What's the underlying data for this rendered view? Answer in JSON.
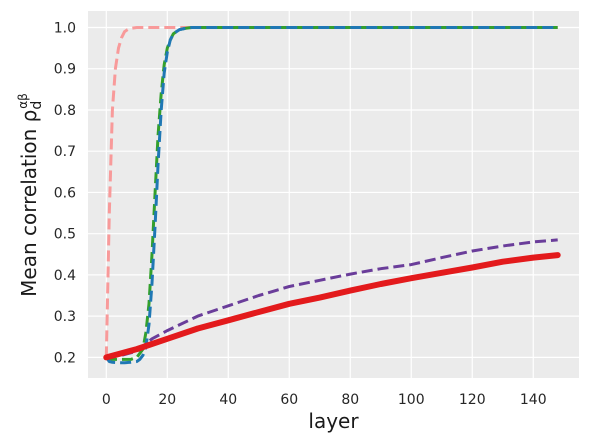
{
  "chart_data": {
    "type": "line",
    "title": "",
    "xlabel": "layer",
    "ylabel": "Mean correlation ρ",
    "ylabel_sub": "d",
    "ylabel_sup": "αβ",
    "xlim": [
      -6,
      155
    ],
    "ylim": [
      0.15,
      1.04
    ],
    "xticks": [
      0,
      20,
      40,
      60,
      80,
      100,
      120,
      140
    ],
    "yticks": [
      0.2,
      0.3,
      0.4,
      0.5,
      0.6,
      0.7,
      0.8,
      0.9,
      1.0
    ],
    "ytick_labels": [
      "0.2",
      "0.3",
      "0.4",
      "0.5",
      "0.6",
      "0.7",
      "0.8",
      "0.9",
      "1.0"
    ],
    "grid": true,
    "background": "#ebebeb",
    "series": [
      {
        "color": "#f89a9a",
        "style": "dashed",
        "width": 3,
        "x": [
          0,
          1,
          2,
          3,
          4,
          5,
          6,
          7,
          8,
          10,
          12,
          15,
          20,
          148
        ],
        "y": [
          0.2,
          0.55,
          0.8,
          0.9,
          0.95,
          0.975,
          0.99,
          0.995,
          0.998,
          1.0,
          1.0,
          1.0,
          1.0,
          1.0
        ]
      },
      {
        "color": "#33a02c",
        "style": "dashed",
        "width": 3,
        "x": [
          0,
          2,
          4,
          6,
          8,
          10,
          12,
          13,
          14,
          15,
          16,
          17,
          18,
          19,
          20,
          21,
          22,
          24,
          26,
          28,
          30,
          148
        ],
        "y": [
          0.2,
          0.195,
          0.195,
          0.195,
          0.195,
          0.2,
          0.22,
          0.26,
          0.33,
          0.45,
          0.6,
          0.74,
          0.84,
          0.91,
          0.95,
          0.97,
          0.985,
          0.995,
          0.998,
          1.0,
          1.0,
          1.0
        ]
      },
      {
        "color": "#1f78b4",
        "style": "dashed",
        "width": 3,
        "x": [
          0,
          1,
          2,
          4,
          6,
          8,
          10,
          11,
          12,
          13,
          14,
          15,
          16,
          17,
          18,
          19,
          20,
          21,
          22,
          24,
          26,
          28,
          30,
          148
        ],
        "y": [
          0.2,
          0.19,
          0.188,
          0.187,
          0.187,
          0.188,
          0.19,
          0.195,
          0.205,
          0.225,
          0.28,
          0.38,
          0.52,
          0.67,
          0.8,
          0.89,
          0.94,
          0.97,
          0.985,
          0.995,
          0.998,
          1.0,
          1.0,
          1.0
        ]
      },
      {
        "color": "#6a3d9a",
        "style": "dashed",
        "width": 3,
        "x": [
          0,
          5,
          10,
          15,
          20,
          30,
          40,
          50,
          60,
          70,
          80,
          90,
          100,
          110,
          120,
          130,
          140,
          148
        ],
        "y": [
          0.2,
          0.205,
          0.215,
          0.245,
          0.265,
          0.3,
          0.325,
          0.35,
          0.372,
          0.387,
          0.402,
          0.415,
          0.425,
          0.442,
          0.458,
          0.47,
          0.48,
          0.485
        ]
      },
      {
        "color": "#e31a1c",
        "style": "solid",
        "width": 6,
        "x": [
          0,
          10,
          20,
          30,
          40,
          50,
          60,
          70,
          80,
          90,
          100,
          110,
          120,
          130,
          140,
          148
        ],
        "y": [
          0.2,
          0.22,
          0.245,
          0.27,
          0.29,
          0.31,
          0.33,
          0.345,
          0.362,
          0.378,
          0.392,
          0.405,
          0.418,
          0.432,
          0.442,
          0.448
        ]
      }
    ]
  }
}
